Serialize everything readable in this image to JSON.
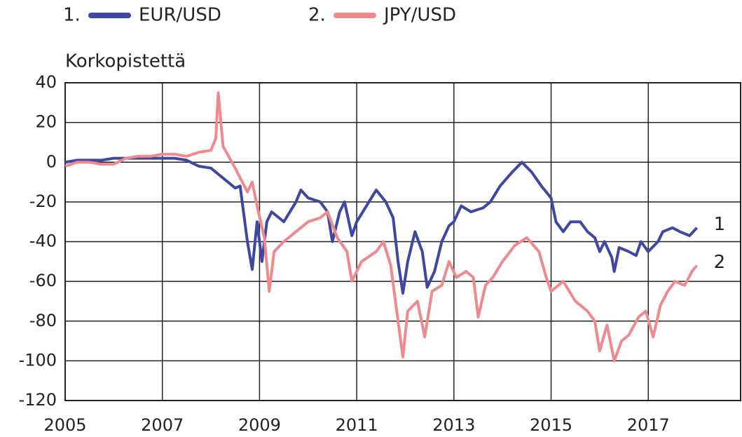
{
  "chart_data": {
    "type": "line",
    "y_axis_label": "Korkopistettä",
    "xlim": [
      2005,
      2018.9
    ],
    "xticks": [
      2005,
      2007,
      2009,
      2011,
      2013,
      2015,
      2017
    ],
    "ylim": [
      -120,
      40
    ],
    "yticks": [
      40,
      20,
      0,
      -20,
      -40,
      -60,
      -80,
      -100,
      -120
    ],
    "grid": true,
    "series": [
      {
        "name": "EUR/USD",
        "legend_number": "1.",
        "end_label": "1",
        "color": "#3f48a0",
        "x": [
          2005,
          2005.25,
          2005.5,
          2005.75,
          2006,
          2006.25,
          2006.5,
          2006.75,
          2007,
          2007.25,
          2007.5,
          2007.75,
          2008,
          2008.25,
          2008.5,
          2008.6,
          2008.75,
          2008.85,
          2008.95,
          2009.05,
          2009.15,
          2009.25,
          2009.5,
          2009.75,
          2009.85,
          2010,
          2010.25,
          2010.4,
          2010.5,
          2010.65,
          2010.75,
          2010.9,
          2011,
          2011.25,
          2011.4,
          2011.6,
          2011.75,
          2011.85,
          2011.95,
          2012.05,
          2012.2,
          2012.35,
          2012.45,
          2012.6,
          2012.75,
          2012.9,
          2013,
          2013.15,
          2013.35,
          2013.6,
          2013.75,
          2013.95,
          2014.2,
          2014.4,
          2014.6,
          2014.8,
          2015,
          2015.1,
          2015.25,
          2015.4,
          2015.6,
          2015.75,
          2015.9,
          2016,
          2016.1,
          2016.25,
          2016.3,
          2016.4,
          2016.6,
          2016.75,
          2016.85,
          2017,
          2017.2,
          2017.3,
          2017.5,
          2017.65,
          2017.85,
          2018
        ],
        "values": [
          0,
          1,
          1,
          1,
          2,
          2,
          2,
          2,
          2,
          2,
          1,
          -2,
          -3,
          -8,
          -13,
          -12,
          -40,
          -54,
          -30,
          -50,
          -30,
          -25,
          -30,
          -20,
          -14,
          -18,
          -20,
          -25,
          -40,
          -25,
          -20,
          -37,
          -30,
          -20,
          -14,
          -20,
          -28,
          -50,
          -66,
          -50,
          -35,
          -45,
          -63,
          -55,
          -40,
          -32,
          -30,
          -22,
          -25,
          -23,
          -20,
          -12,
          -5,
          0,
          -5,
          -12,
          -18,
          -30,
          -35,
          -30,
          -30,
          -35,
          -38,
          -45,
          -40,
          -48,
          -55,
          -43,
          -45,
          -47,
          -40,
          -45,
          -40,
          -35,
          -33,
          -35,
          -37,
          -33
        ]
      },
      {
        "name": "JPY/USD",
        "legend_number": "2.",
        "end_label": "2",
        "color": "#ee8a8e",
        "x": [
          2005,
          2005.25,
          2005.5,
          2005.75,
          2006,
          2006.25,
          2006.5,
          2006.75,
          2007,
          2007.25,
          2007.5,
          2007.75,
          2008,
          2008.1,
          2008.15,
          2008.25,
          2008.5,
          2008.75,
          2008.85,
          2008.95,
          2009.1,
          2009.2,
          2009.3,
          2009.5,
          2009.75,
          2010,
          2010.25,
          2010.4,
          2010.6,
          2010.8,
          2010.9,
          2011.1,
          2011.4,
          2011.55,
          2011.7,
          2011.85,
          2011.95,
          2012.05,
          2012.25,
          2012.4,
          2012.55,
          2012.75,
          2012.9,
          2013.05,
          2013.25,
          2013.4,
          2013.5,
          2013.65,
          2013.8,
          2014,
          2014.25,
          2014.5,
          2014.75,
          2014.9,
          2015,
          2015.25,
          2015.5,
          2015.75,
          2015.9,
          2016,
          2016.15,
          2016.3,
          2016.45,
          2016.6,
          2016.8,
          2016.95,
          2017.1,
          2017.25,
          2017.4,
          2017.55,
          2017.75,
          2017.9,
          2018
        ],
        "values": [
          -2,
          0,
          0,
          -1,
          -1,
          2,
          3,
          3,
          4,
          4,
          3,
          5,
          6,
          12,
          35,
          8,
          -3,
          -15,
          -10,
          -22,
          -38,
          -65,
          -45,
          -40,
          -35,
          -30,
          -28,
          -25,
          -38,
          -45,
          -60,
          -50,
          -45,
          -40,
          -52,
          -80,
          -98,
          -75,
          -70,
          -88,
          -65,
          -62,
          -50,
          -58,
          -55,
          -58,
          -78,
          -62,
          -58,
          -50,
          -42,
          -38,
          -45,
          -58,
          -65,
          -60,
          -70,
          -75,
          -80,
          -95,
          -82,
          -100,
          -90,
          -87,
          -78,
          -75,
          -88,
          -72,
          -65,
          -60,
          -62,
          -55,
          -52
        ]
      }
    ]
  }
}
